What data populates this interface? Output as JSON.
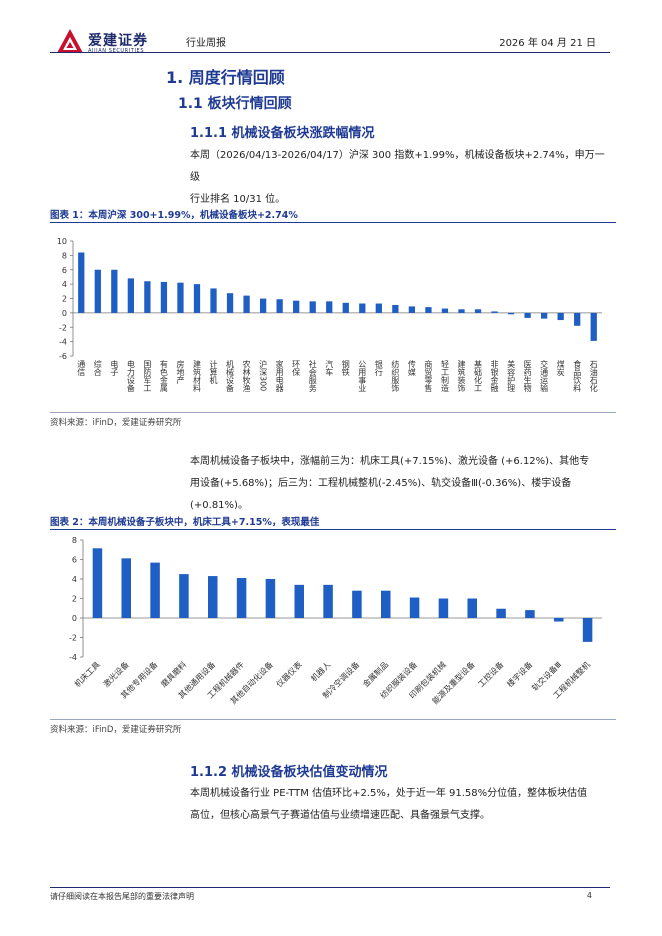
{
  "header": {
    "logo_cn": "爱建证券",
    "logo_en": "AIJIAN SECURITIES",
    "report_type": "行业周报",
    "date": "2026 年 04 月 21 日"
  },
  "section1": {
    "title": "1.  周度行情回顾"
  },
  "section1_1": {
    "title": "1.1 板块行情回顾"
  },
  "section1_1_1": {
    "title": "1.1.1  机械设备板块涨跌幅情况",
    "para_line1": "本周（2026/04/13-2026/04/17）沪深 300 指数+1.99%，机械设备板块+2.74%，申万一级",
    "para_line2": "行业排名 10/31 位。"
  },
  "figure1": {
    "title": "图表 1：本周沪深 300+1.99%，机械设备板块+2.74%",
    "source": "资料来源：iFinD，爱建证券研究所"
  },
  "para2": {
    "line1": "本周机械设备子板块中，涨幅前三为：机床工具(+7.15%)、激光设备  (+6.12%)、其他专",
    "line2": "用设备(+5.68%)；后三为：工程机械整机(-2.45%)、轨交设备Ⅲ(-0.36%)、楼宇设备(+0.81%)。"
  },
  "figure2": {
    "title": "图表 2：本周机械设备子板块中，机床工具+7.15%，表现最佳",
    "source": "资料来源：iFinD，爱建证券研究所"
  },
  "section1_1_2": {
    "title": "1.1.2  机械设备板块估值变动情况",
    "para_line1": "本周机械设备行业 PE-TTM 估值环比+2.5%，处于近一年 91.58%分位值，整体板块估值",
    "para_line2": "高位，但核心高景气子赛道估值与业绩增速匹配、具备强景气支撑。"
  },
  "footer": {
    "note": "请仔细阅读在本报告尾部的重要法律声明",
    "page": "4"
  },
  "colors": {
    "bar": "#1f5fc4",
    "heading": "#1f3a93",
    "brand": "#c8102e"
  },
  "chart_data": [
    {
      "type": "bar",
      "categories": [
        "通信",
        "综合",
        "电子",
        "电力设备",
        "国防军工",
        "有色金属",
        "房地产",
        "建筑材料",
        "计算机",
        "机械设备",
        "农林牧渔",
        "沪深300",
        "家用电器",
        "环保",
        "社会服务",
        "汽车",
        "钢铁",
        "公用事业",
        "银行",
        "纺织服饰",
        "传媒",
        "商贸零售",
        "轻工制造",
        "建筑装饰",
        "基础化工",
        "非银金融",
        "美容护理",
        "医药生物",
        "交通运输",
        "煤炭",
        "食品饮料",
        "石油石化"
      ],
      "values": [
        8.4,
        6.0,
        6.0,
        4.8,
        4.4,
        4.3,
        4.2,
        4.0,
        3.4,
        2.74,
        2.4,
        1.99,
        1.9,
        1.7,
        1.6,
        1.6,
        1.4,
        1.3,
        1.3,
        1.1,
        0.9,
        0.8,
        0.6,
        0.5,
        0.5,
        0.2,
        -0.2,
        -0.7,
        -0.8,
        -1.0,
        -1.8,
        -3.9
      ],
      "ylim": [
        -6,
        10
      ],
      "yticks": [
        -6,
        -4,
        -2,
        0,
        2,
        4,
        6,
        8,
        10
      ]
    },
    {
      "type": "bar",
      "categories": [
        "机床工具",
        "激光设备",
        "其他专用设备",
        "磨具磨料",
        "其他通用设备",
        "工程机械器件",
        "其他自动化设备",
        "仪器仪表",
        "机器人",
        "制冷空调设备",
        "金属制品",
        "纺织服装设备",
        "印刷包装机械",
        "能源及重型设备",
        "工控设备",
        "楼宇设备",
        "轨交设备Ⅲ",
        "工程机械整机"
      ],
      "values": [
        7.15,
        6.12,
        5.68,
        4.5,
        4.3,
        4.1,
        4.0,
        3.4,
        3.4,
        2.8,
        2.8,
        2.1,
        2.0,
        2.0,
        0.95,
        0.81,
        -0.36,
        -2.45
      ],
      "ylim": [
        -4,
        8
      ],
      "yticks": [
        -4,
        -2,
        0,
        2,
        4,
        6,
        8
      ]
    }
  ]
}
